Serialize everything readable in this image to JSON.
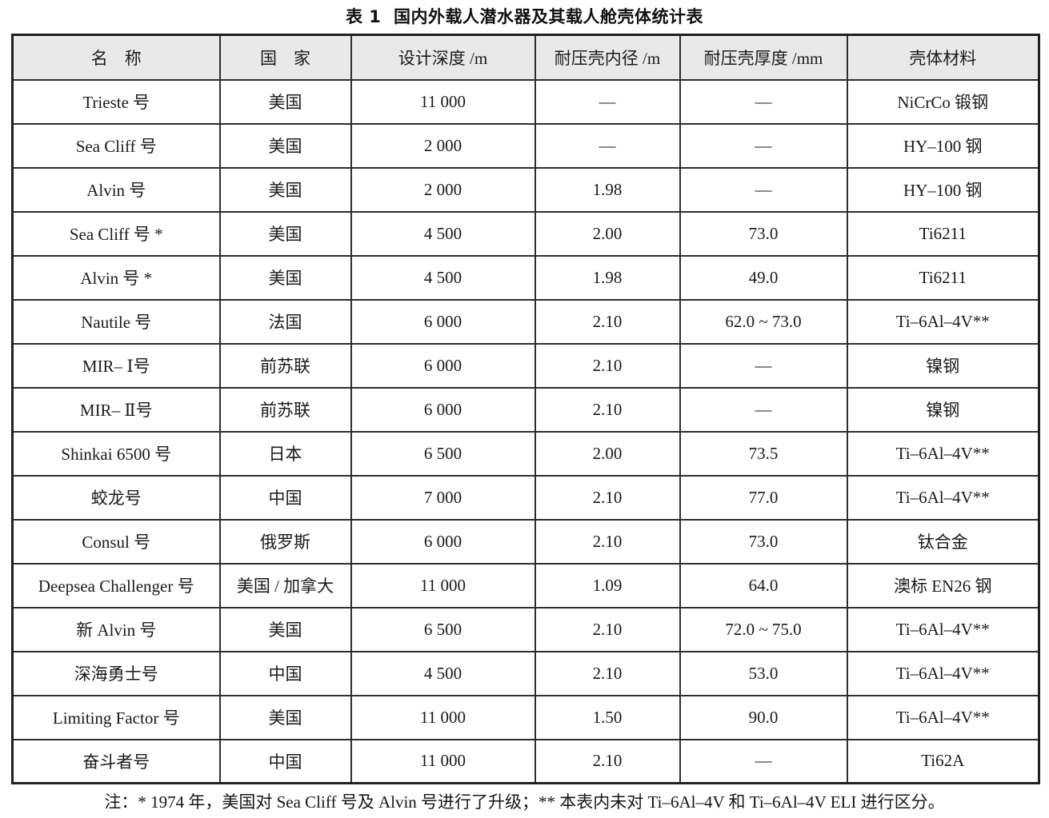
{
  "title": "表 1  国内外载人潜水器及其载人舱壳体统计表",
  "table": {
    "headers": [
      "名　称",
      "国　家",
      "设计深度 /m",
      "耐压壳内径 /m",
      "耐压壳厚度 /mm",
      "壳体材料"
    ],
    "rows": [
      [
        "Trieste 号",
        "美国",
        "11 000",
        "—",
        "—",
        "NiCrCo 锻钢"
      ],
      [
        "Sea Cliff 号",
        "美国",
        "2 000",
        "—",
        "—",
        "HY–100 钢"
      ],
      [
        "Alvin 号",
        "美国",
        "2 000",
        "1.98",
        "—",
        "HY–100 钢"
      ],
      [
        "Sea Cliff 号 *",
        "美国",
        "4 500",
        "2.00",
        "73.0",
        "Ti6211"
      ],
      [
        "Alvin 号 *",
        "美国",
        "4 500",
        "1.98",
        "49.0",
        "Ti6211"
      ],
      [
        "Nautile 号",
        "法国",
        "6 000",
        "2.10",
        "62.0 ~ 73.0",
        "Ti–6Al–4V**"
      ],
      [
        "MIR– Ⅰ号",
        "前苏联",
        "6 000",
        "2.10",
        "—",
        "镍钢"
      ],
      [
        "MIR– Ⅱ号",
        "前苏联",
        "6 000",
        "2.10",
        "—",
        "镍钢"
      ],
      [
        "Shinkai 6500 号",
        "日本",
        "6 500",
        "2.00",
        "73.5",
        "Ti–6Al–4V**"
      ],
      [
        "蛟龙号",
        "中国",
        "7 000",
        "2.10",
        "77.0",
        "Ti–6Al–4V**"
      ],
      [
        "Consul 号",
        "俄罗斯",
        "6 000",
        "2.10",
        "73.0",
        "钛合金"
      ],
      [
        "Deepsea Challenger 号",
        "美国 / 加拿大",
        "11 000",
        "1.09",
        "64.0",
        "澳标 EN26 钢"
      ],
      [
        "新 Alvin 号",
        "美国",
        "6 500",
        "2.10",
        "72.0 ~ 75.0",
        "Ti–6Al–4V**"
      ],
      [
        "深海勇士号",
        "中国",
        "4 500",
        "2.10",
        "53.0",
        "Ti–6Al–4V**"
      ],
      [
        "Limiting Factor 号",
        "美国",
        "11 000",
        "1.50",
        "90.0",
        "Ti–6Al–4V**"
      ],
      [
        "奋斗者号",
        "中国",
        "11 000",
        "2.10",
        "—",
        "Ti62A"
      ]
    ]
  },
  "note": "注：* 1974 年，美国对 Sea Cliff 号及 Alvin 号进行了升级；** 本表内未对 Ti–6Al–4V 和 Ti–6Al–4V ELI 进行区分。",
  "colors": {
    "header_bg": "#e9e9e9",
    "border": "#2e2e2e",
    "outer_border": "#1f1f1f",
    "text": "#1a1a1a"
  }
}
